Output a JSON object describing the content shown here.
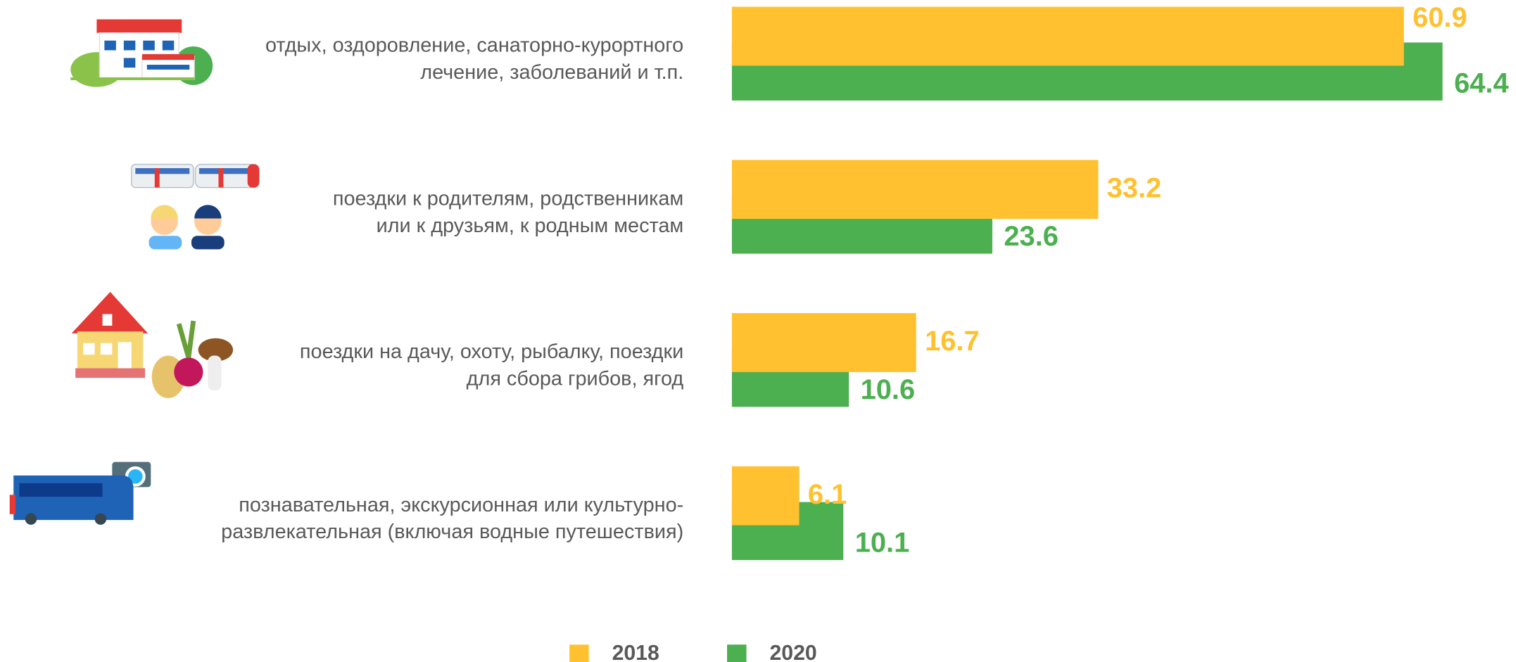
{
  "chart_data": {
    "type": "bar",
    "categories": [
      [
        "отдых, оздоровление, санаторно-курортного",
        "лечение, заболеваний и т.п."
      ],
      [
        "поездки к родителям, родственникам",
        "или к друзьям, к родным местам"
      ],
      [
        "поездки на дачу, охоту, рыбалку, поездки",
        "для сбора грибов, ягод"
      ],
      [
        "познавательная, экскурсионная или культурно-",
        "развлекательная (включая водные путешествия)"
      ]
    ],
    "series": [
      {
        "name": "2018",
        "color": "#FFC12F",
        "values": [
          60.9,
          33.2,
          16.7,
          6.1
        ]
      },
      {
        "name": "2020",
        "color": "#4CAF50",
        "values": [
          64.4,
          23.6,
          10.6,
          10.1
        ]
      }
    ]
  }
}
